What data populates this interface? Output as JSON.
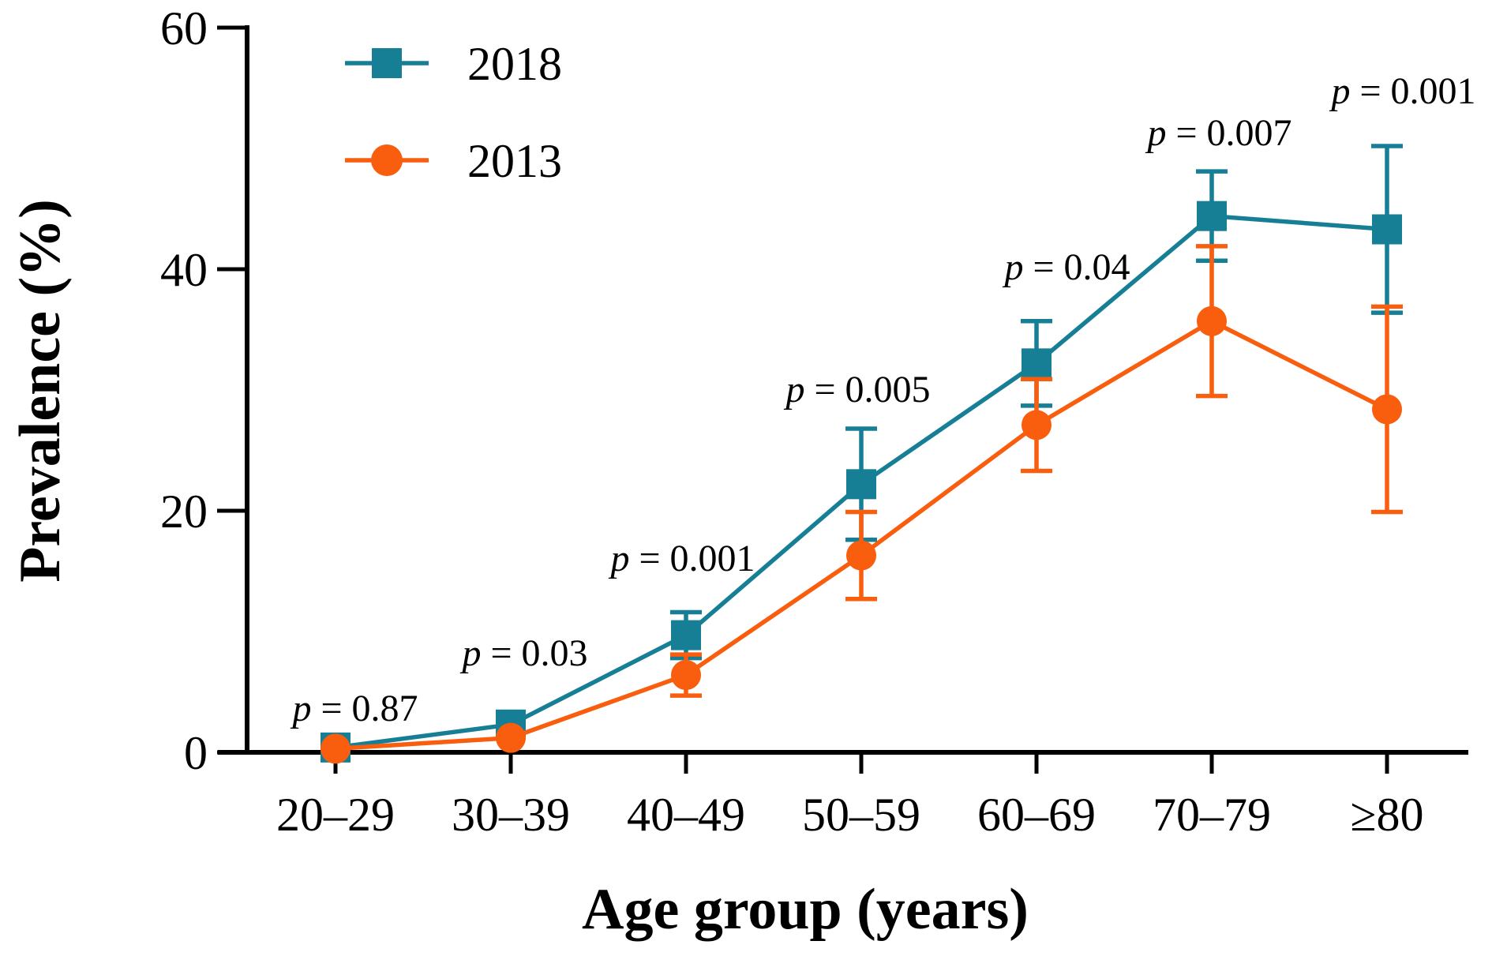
{
  "chart_data": {
    "type": "line",
    "title": "",
    "xlabel": "Age group (years)",
    "ylabel": "Prevalence (%)",
    "ylim": [
      0,
      60
    ],
    "yticks": [
      0,
      20,
      40,
      60
    ],
    "yticklabels": [
      "0",
      "20",
      "40",
      "60"
    ],
    "categories": [
      "20–29",
      "30–39",
      "40–49",
      "50–59",
      "60–69",
      "70–79",
      "≥80"
    ],
    "grid": false,
    "legend_position": "top-left-inside",
    "axis_color": "#000000",
    "background_color": "#ffffff",
    "series": [
      {
        "name": "2018",
        "marker": "square",
        "color": "#177f95",
        "values": [
          0.4,
          2.3,
          9.7,
          22.2,
          32.2,
          44.4,
          43.3
        ],
        "error": [
          0,
          0,
          1.9,
          4.6,
          3.5,
          3.7,
          6.9
        ]
      },
      {
        "name": "2013",
        "marker": "circle",
        "color": "#f95d0e",
        "values": [
          0.3,
          1.2,
          6.4,
          16.3,
          27.1,
          35.7,
          28.4
        ],
        "error": [
          0,
          0,
          1.7,
          3.6,
          3.8,
          6.2,
          8.5
        ]
      }
    ],
    "annotations": [
      {
        "label": "p = 0.87"
      },
      {
        "label": "p = 0.03"
      },
      {
        "label": "p = 0.001"
      },
      {
        "label": "p = 0.005"
      },
      {
        "label": "p = 0.04"
      },
      {
        "label": "p = 0.007"
      },
      {
        "label": "p = 0.001"
      }
    ]
  }
}
